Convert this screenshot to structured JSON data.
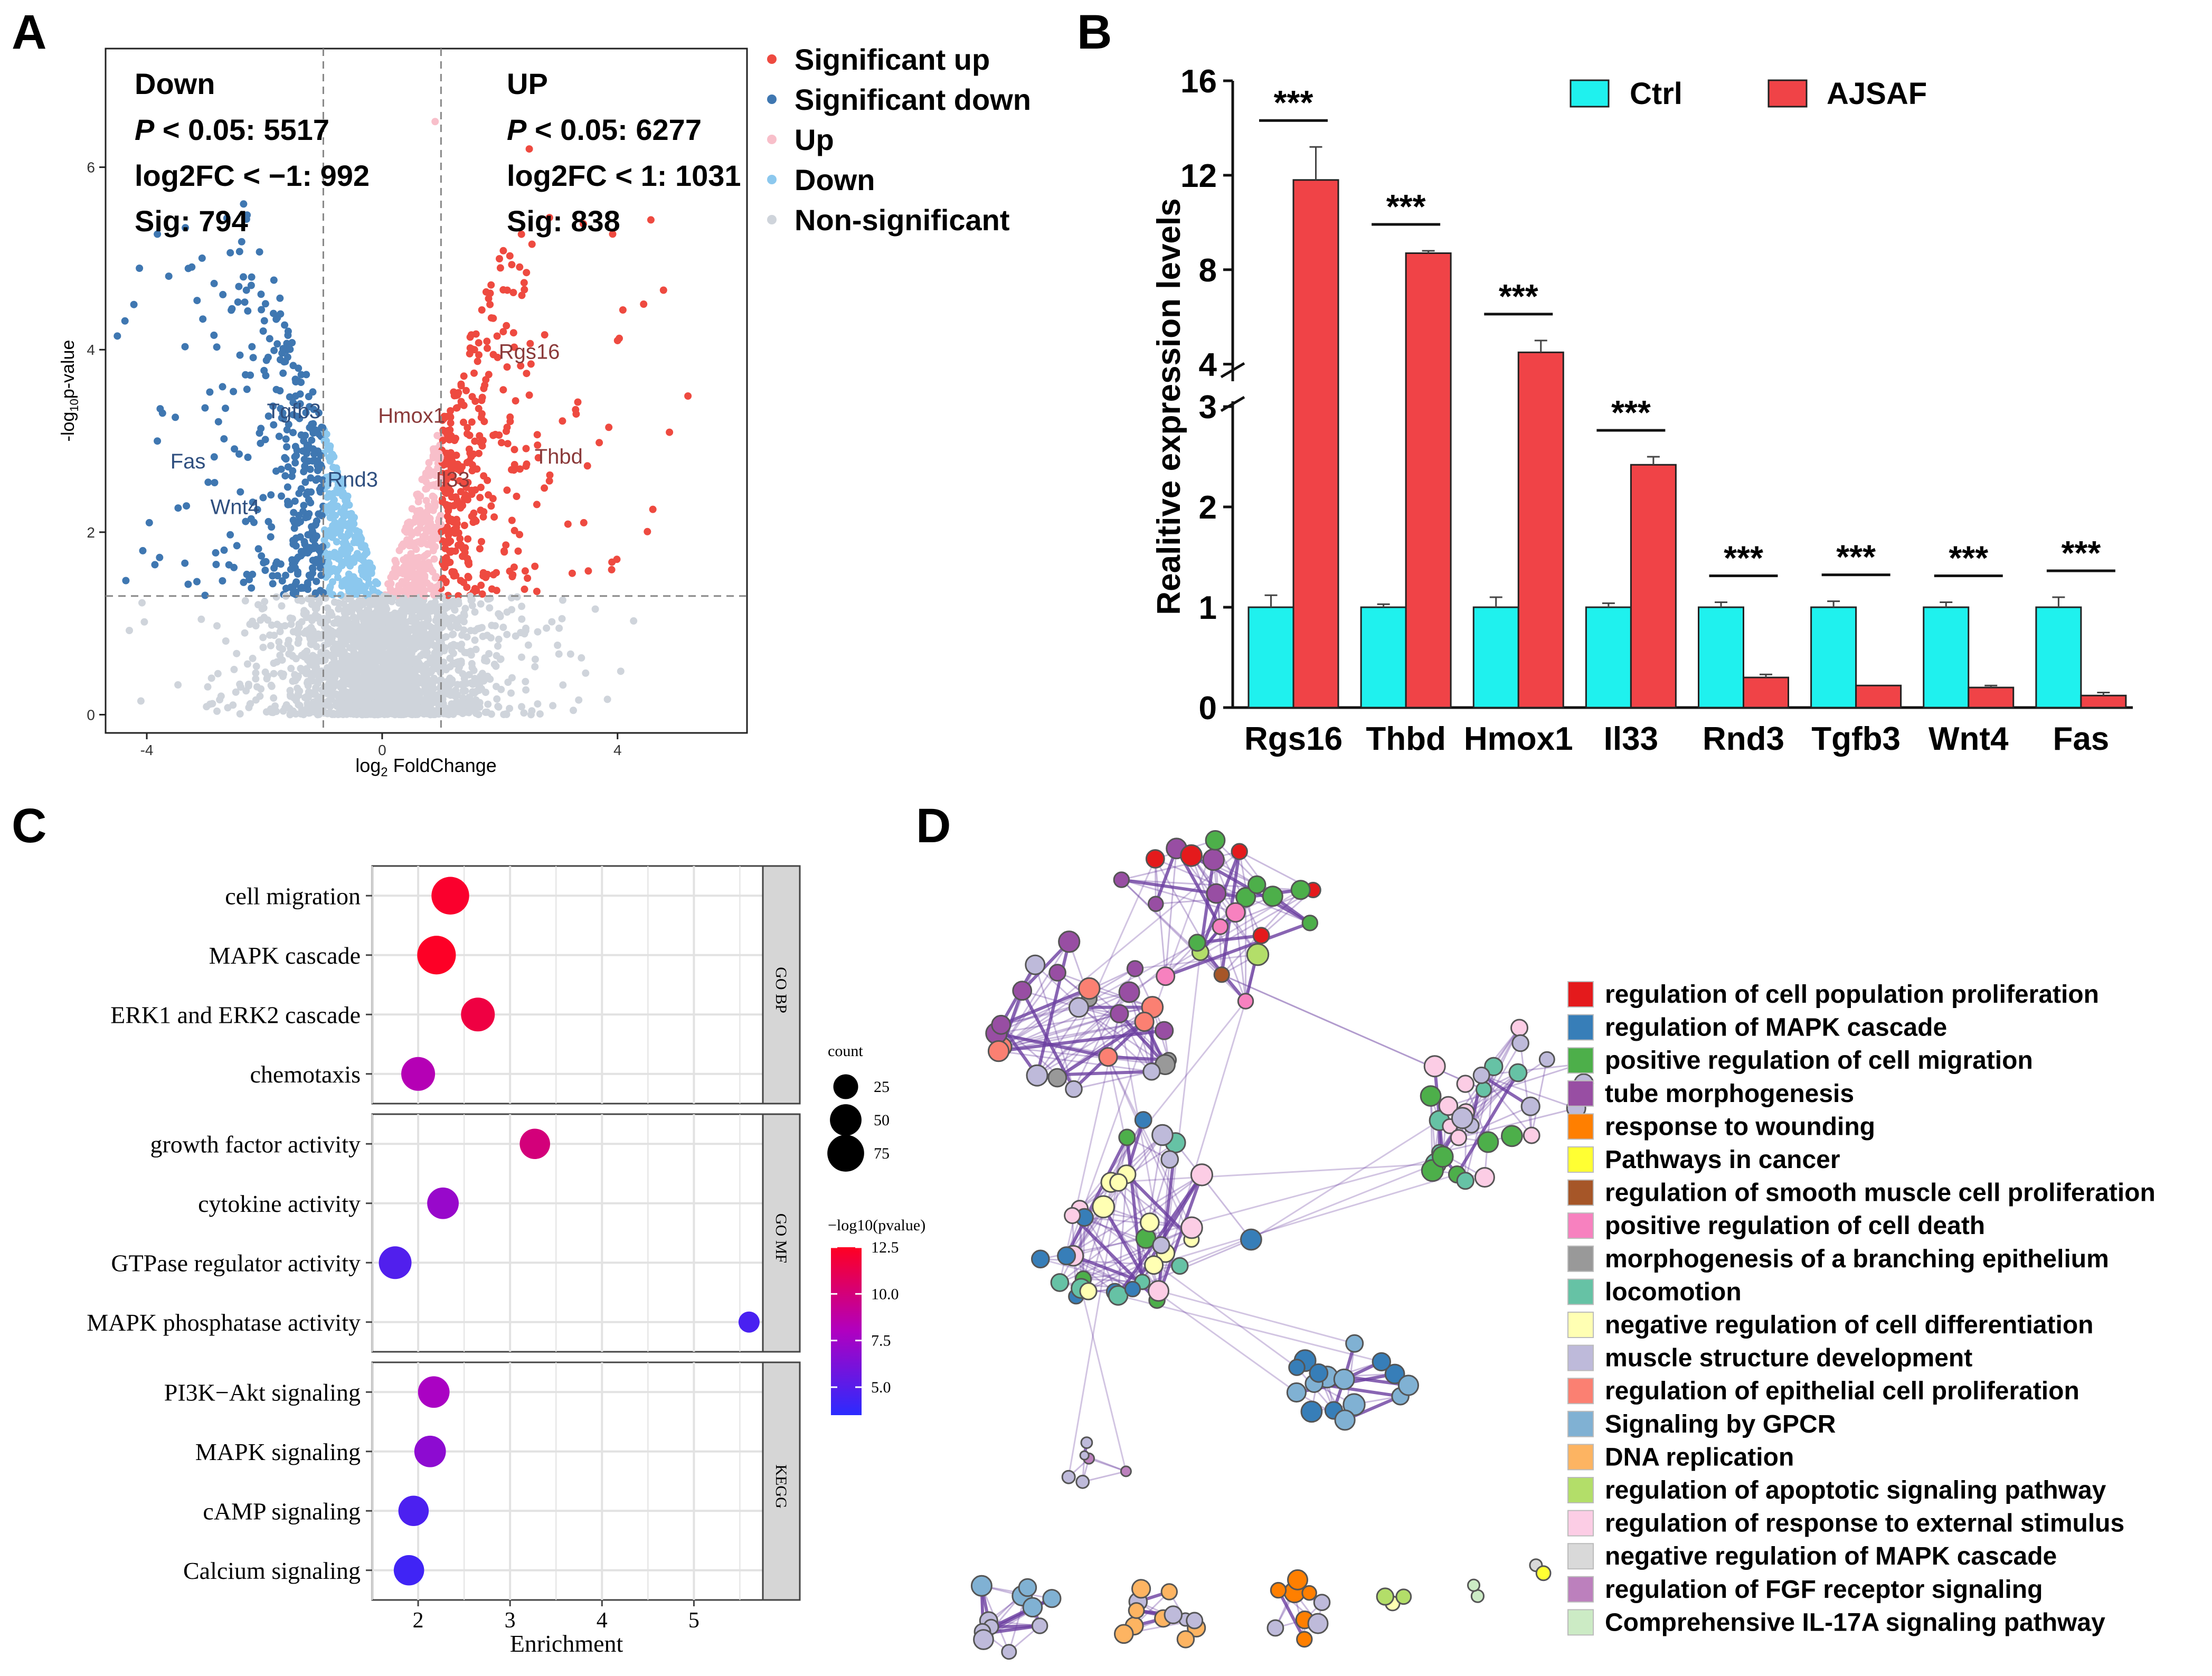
{
  "panels": {
    "a": "A",
    "b": "B",
    "c": "C",
    "d": "D"
  },
  "colors": {
    "sig_up": "#ee4a40",
    "sig_down": "#3f77b1",
    "up": "#f8bfca",
    "down": "#8cc8ee",
    "nonsig": "#cfd4db",
    "ctrl": "#1ff1ee",
    "ajsaf": "#f04347",
    "network_edge": "#6b3fa0"
  },
  "chart_data": [
    {
      "panel": "A",
      "type": "scatter",
      "title": "",
      "xlabel": "log2 FoldChange",
      "ylabel": "-log10p-value",
      "xlim": [
        -4.7,
        6.2
      ],
      "ylim": [
        -0.2,
        7.3
      ],
      "xticks": [
        "-4",
        "0",
        "4"
      ],
      "yticks": [
        "0",
        "2",
        "4",
        "6"
      ],
      "x_threshold": [
        -1,
        1
      ],
      "y_threshold": 1.3,
      "stats": {
        "down": {
          "title": "Down",
          "p_label": "P",
          "p_rest": " < 0.05: 5517",
          "fc": "log2FC < −1: 992",
          "sig": "Sig: 794"
        },
        "up": {
          "title": "UP",
          "p_label": "P",
          "p_rest": " < 0.05: 6277",
          "fc": "log2FC < 1: 1031",
          "sig": "Sig: 838"
        }
      },
      "legend": [
        "Significant up",
        "Significant down",
        "Up",
        "Down",
        "Non-significant"
      ],
      "labeled_genes": [
        {
          "name": "Rgs16",
          "x": 2.5,
          "y": 3.9
        },
        {
          "name": "Hmox1",
          "x": 0.5,
          "y": 3.2
        },
        {
          "name": "Thbd",
          "x": 3.0,
          "y": 2.75
        },
        {
          "name": "Il33",
          "x": 1.2,
          "y": 2.5
        },
        {
          "name": "Tgfb3",
          "x": -1.5,
          "y": 3.25
        },
        {
          "name": "Fas",
          "x": -3.3,
          "y": 2.7
        },
        {
          "name": "Rnd3",
          "x": -0.5,
          "y": 2.5
        },
        {
          "name": "Wnt4",
          "x": -2.5,
          "y": 2.2
        }
      ]
    },
    {
      "panel": "B",
      "type": "bar",
      "ylabel": "Realitive expression levels",
      "categories": [
        "Rgs16",
        "Thbd",
        "Hmox1",
        "Il33",
        "Rnd3",
        "Tgfb3",
        "Wnt4",
        "Fas"
      ],
      "series": [
        {
          "name": "Ctrl",
          "values": [
            1.0,
            1.0,
            1.0,
            1.0,
            1.0,
            1.0,
            1.0,
            1.0
          ],
          "errors": [
            0.12,
            0.03,
            0.1,
            0.04,
            0.05,
            0.06,
            0.05,
            0.1
          ]
        },
        {
          "name": "AJSAF",
          "values": [
            11.8,
            8.7,
            4.5,
            2.42,
            0.3,
            0.22,
            0.2,
            0.12
          ],
          "errors": [
            1.4,
            0.1,
            0.5,
            0.08,
            0.03,
            0.0,
            0.02,
            0.03
          ]
        }
      ],
      "broken_axis": {
        "lower": [
          0,
          3
        ],
        "upper": [
          3.5,
          16
        ]
      },
      "yticks_lower": [
        "0",
        "1",
        "2",
        "3"
      ],
      "yticks_upper": [
        "4",
        "8",
        "12",
        "16"
      ],
      "significance": [
        "***",
        "***",
        "***",
        "***",
        "***",
        "***",
        "***",
        "***"
      ]
    },
    {
      "panel": "C",
      "type": "scatter",
      "subtype": "dot-enrichment",
      "xlabel": "Enrichment",
      "xlim": [
        1.5,
        5.75
      ],
      "xticks": [
        "2",
        "3",
        "4",
        "5"
      ],
      "groups": [
        {
          "name": "GO BP",
          "terms": [
            {
              "term": "cell migration",
              "enrichment": 2.35,
              "count": 80,
              "neglog10p": 12.2
            },
            {
              "term": "MAPK cascade",
              "enrichment": 2.2,
              "count": 85,
              "neglog10p": 12.4
            },
            {
              "term": "ERK1 and ERK2 cascade",
              "enrichment": 2.65,
              "count": 60,
              "neglog10p": 11.6
            },
            {
              "term": "chemotaxis",
              "enrichment": 2.0,
              "count": 60,
              "neglog10p": 8.3
            }
          ]
        },
        {
          "name": "GO MF",
          "terms": [
            {
              "term": "growth factor activity",
              "enrichment": 3.27,
              "count": 45,
              "neglog10p": 10.0
            },
            {
              "term": "cytokine activity",
              "enrichment": 2.27,
              "count": 50,
              "neglog10p": 7.2
            },
            {
              "term": "GTPase regulator activity",
              "enrichment": 1.75,
              "count": 55,
              "neglog10p": 4.8
            },
            {
              "term": "MAPK phosphatase activity",
              "enrichment": 5.6,
              "count": 15,
              "neglog10p": 4.5
            }
          ]
        },
        {
          "name": "KEGG",
          "terms": [
            {
              "term": "PI3K−Akt signaling",
              "enrichment": 2.17,
              "count": 50,
              "neglog10p": 7.8
            },
            {
              "term": "MAPK signaling",
              "enrichment": 2.13,
              "count": 50,
              "neglog10p": 6.8
            },
            {
              "term": "cAMP signaling",
              "enrichment": 1.95,
              "count": 45,
              "neglog10p": 4.6
            },
            {
              "term": "Calcium signaling",
              "enrichment": 1.9,
              "count": 45,
              "neglog10p": 4.2
            }
          ]
        }
      ],
      "size_legend_title": "count",
      "size_legend": [
        25,
        50,
        75
      ],
      "color_legend_title": "−log10(pvalue)",
      "color_ticks": [
        "12.5",
        "10.0",
        "7.5",
        "5.0"
      ],
      "color_range": [
        3.5,
        12.5
      ]
    },
    {
      "panel": "D",
      "type": "network",
      "legend": [
        {
          "label": "regulation of cell population proliferation",
          "color": "#e41a1c"
        },
        {
          "label": "regulation of MAPK cascade",
          "color": "#377eb8"
        },
        {
          "label": "positive regulation of cell migration",
          "color": "#4daf4a"
        },
        {
          "label": "tube morphogenesis",
          "color": "#984ea3"
        },
        {
          "label": "response to wounding",
          "color": "#ff7f00"
        },
        {
          "label": "Pathways in cancer",
          "color": "#ffff33"
        },
        {
          "label": "regulation of smooth muscle cell proliferation",
          "color": "#a65628"
        },
        {
          "label": "positive regulation of cell death",
          "color": "#f781bf"
        },
        {
          "label": "morphogenesis of a branching epithelium",
          "color": "#999999"
        },
        {
          "label": "locomotion",
          "color": "#66c2a5"
        },
        {
          "label": "negative regulation of cell differentiation",
          "color": "#ffffb3"
        },
        {
          "label": "muscle structure development",
          "color": "#bebada"
        },
        {
          "label": "regulation of epithelial cell proliferation",
          "color": "#fb8072"
        },
        {
          "label": "Signaling by GPCR",
          "color": "#80b1d3"
        },
        {
          "label": "DNA replication",
          "color": "#fdb462"
        },
        {
          "label": "regulation of apoptotic signaling pathway",
          "color": "#b3de69"
        },
        {
          "label": "regulation of response to external stimulus",
          "color": "#fccde5"
        },
        {
          "label": "negative regulation of MAPK cascade",
          "color": "#d9d9d9"
        },
        {
          "label": "regulation of FGF receptor signaling",
          "color": "#bc80bd"
        },
        {
          "label": "Comprehensive IL-17A signaling pathway",
          "color": "#ccebc5"
        }
      ]
    }
  ]
}
